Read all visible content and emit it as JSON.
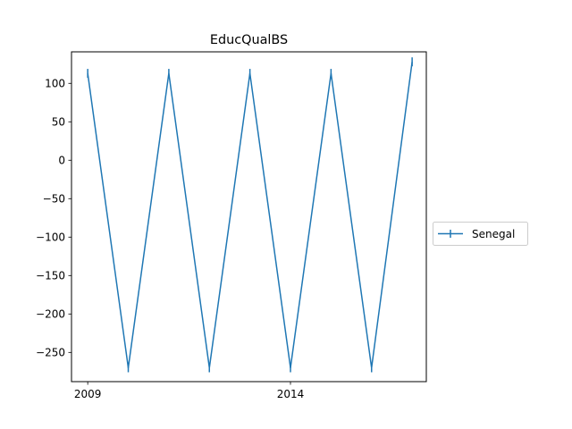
{
  "chart_data": {
    "type": "line",
    "title": "EducQualBS",
    "xlabel": "",
    "ylabel": "",
    "x": [
      2009,
      2010,
      2011,
      2012,
      2013,
      2014,
      2015,
      2016,
      2017
    ],
    "xlim": [
      2008.6,
      2017.35
    ],
    "ylim": [
      -288,
      141
    ],
    "xticks": [
      2009,
      2014
    ],
    "yticks": [
      -250,
      -200,
      -150,
      -100,
      -50,
      0,
      50,
      100
    ],
    "ytick_labels": [
      "−250",
      "−200",
      "−150",
      "−100",
      "−50",
      "0",
      "50",
      "100"
    ],
    "grid": false,
    "legend_position": "center-right, outside plot",
    "series": [
      {
        "name": "Senegal",
        "color": "#1f77b4",
        "marker": "vertical-line",
        "values": [
          113,
          -270,
          113,
          -270,
          113,
          -270,
          113,
          -270,
          128
        ]
      }
    ]
  }
}
